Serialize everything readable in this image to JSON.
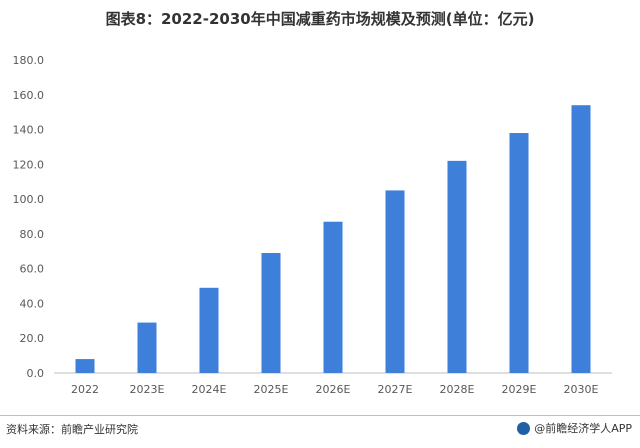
{
  "title": "图表8：2022-2030年中国减重药市场规模及预测(单位：亿元)",
  "source": "资料来源：前瞻产业研究院",
  "brand": "@前瞻经济学人APP",
  "colors": {
    "bar": "#3d7fd9",
    "axis": "#bfbfbf",
    "text": "#595959"
  },
  "chart_data": {
    "type": "bar",
    "categories": [
      "2022",
      "2023E",
      "2024E",
      "2025E",
      "2026E",
      "2027E",
      "2028E",
      "2029E",
      "2030E"
    ],
    "values": [
      8,
      29,
      49,
      69,
      87,
      105,
      122,
      138,
      154
    ],
    "title": "图表8：2022-2030年中国减重药市场规模及预测(单位：亿元)",
    "xlabel": "",
    "ylabel": "",
    "ylim": [
      0,
      180
    ],
    "yticks": [
      "0.0",
      "20.0",
      "40.0",
      "60.0",
      "80.0",
      "100.0",
      "120.0",
      "140.0",
      "160.0",
      "180.0"
    ],
    "grid": false,
    "legend": "none"
  }
}
